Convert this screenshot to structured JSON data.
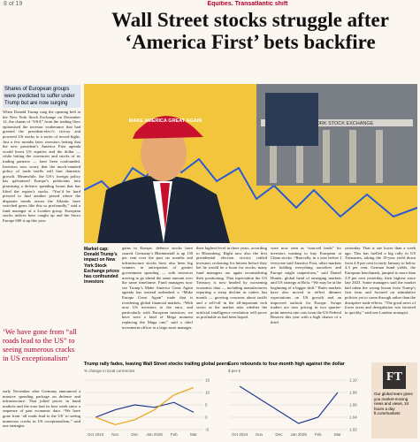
{
  "header": {
    "page": "8 of 19",
    "section": "Equities. Transatlantic shift",
    "headline": "Wall Street stocks struggle after ‘America First’ bets backfire"
  },
  "sidebar": {
    "standfirst": "Shares of European groups were predicted to suffer under Trump but are now surging",
    "body": "When Donald Trump rang the opening bell at the New York Stock Exchange on December 12, the chants of “USA” from the trading floor epitomised the investor exuberance that had greeted the president-elect’s victory and powered US stocks to a series of record highs. Just a few months later, investors betting that the new president’s America First agenda would boost US equities and the dollar — while hitting the currencies and stocks of its trading partners — have been confounded. Investors now worry that the much-vaunted policy of trade tariffs will hurt domestic growth. Meanwhile, the US’s foreign policy has galvanised Europe’s politicians into promising a defence spending boom that has lifted the region’s stocks. “You’d be hard pressed to find another period where the disparate trends across the Atlantic have switched gears like this so profoundly,” said a fund manager at a London group. European stocks indices have caught up and the Stoxx Europe 600 is up this year."
  },
  "image": {
    "cap": "MAKE AMERICA GREAT AGAIN",
    "sign": "NEW YORK STOCK EXCHANGE"
  },
  "caption": "Market cap: Donald Trump’s impact on New York Stock Exchange prices has confounded investors",
  "columns": [
    "gains in Europe, defence stocks have soared. Germany’s Rheinmetall is up 130 per cent over the past six months and infrastructure stocks have also been big winners in anticipation of greater government spending — with investors moving to go ahead the same amount over the same timeframe. Fund managers now see Trump’s Make America Great Again agenda has instead unleashed a “Make Europe Great Again” trade that is reordering global financial markets. “With now US investors to the euro, and particularly with European investors, we have seen a kind of Mega moment replacing the Maga one,” said a chief investment officer at a large asset manager.",
    "their highest level in three years, according to Bloomberg. Right now also the first presidential election victory rattled investors reckoning for havens before they bet he would be a boon for stocks, many fund managers are again reconsidering their positioning. That expectation the US Treasury is now headed by worsening economic data — including manufacturers reporting a steep decline in orders last month — growing concerns about tariffs and a sell-off in the all-important tech sector as the market asks whether the artificial intelligence revolution will prove as profitable as had been hoped.",
    "were now seen as “sourced leads” for investors wanting to buy European at China stocks. “Basically, in a year before I everyone said America First, other markets are holding everything ourselves and Europe might outperform,” said Daniel Hunter, global head of emerging markets and US strategy at Bofa. “We may be at the beginning of a bigger shift.” Rates markets have also moved to reflect dimmer expectations on US growth and an improved outlook for Europe. Swaps traders are now pricing in two quarter-point interest rate cuts from the US Federal Reserve this year with a high chance of a third.",
    "yesterday. That is one lower than a week ago. This has fuelled a big rally in US Treasuries, taking the 10-year yield down from 4.8 per cent in early January to below 4.3 per cent. German bund yields, the European benchmark, jumped to more than 2.8 per cent yesterday, their highest since late 2023. Some managers said the market had taken the wrong lesson from Trump’s first term and focused on stimulative policies yet to come through rather than the disruptive trade effects. “The good news of lower taxes and deregulation was factored in quickly,” said one London strategist."
  ],
  "pull_quote": "‘We have gone from “all roads lead to the US” to seeing numerous cracks in US exceptionalism’",
  "lower_left": "early November after Germany announced a massive spending package on defence and infrastructure. That jolted prices in bund markets and the euro had its best week since a sequence of past economic data. “We have gone from ‘all roads lead to the US’ to seeing numerous cracks in US exceptionalism,” said one strategist.",
  "charts": [
    {
      "type": "line",
      "title": "Trump rally fades, leaving Wall Street stocks trailing global peers",
      "subtitle": "% change in local currencies",
      "categories": [
        "Oct 2024",
        "Nov",
        "Dec",
        "Jan 2025",
        "Feb",
        "Mar"
      ],
      "ylim": [
        -5,
        15
      ],
      "yticks": [
        -5,
        0,
        5,
        10,
        15
      ],
      "series": [
        {
          "color": "#1f3a93",
          "values": [
            0,
            3,
            5,
            4,
            6,
            2
          ]
        },
        {
          "color": "#e8a317",
          "values": [
            0,
            -3,
            -1,
            3,
            9,
            12
          ]
        }
      ]
    },
    {
      "type": "line",
      "title": "Euro rebounds to four-month high against the dollar",
      "subtitle": "$ per €",
      "categories": [
        "Oct 2024",
        "Nov",
        "Dec",
        "Jan 2025",
        "Feb",
        "Mar"
      ],
      "ylim": [
        1.02,
        1.1
      ],
      "yticks": [
        {
          "value": 1.02,
          "label": "1.02"
        },
        {
          "value": 1.04,
          "label": "1.04"
        },
        {
          "value": 1.06,
          "label": "1.06"
        },
        {
          "value": 1.08,
          "label": "1.08"
        },
        {
          "value": 1.1,
          "label": "1.10"
        }
      ],
      "series": [
        {
          "color": "#1f3a93",
          "values": [
            1.09,
            1.07,
            1.05,
            1.03,
            1.04,
            1.08
          ]
        }
      ]
    }
  ],
  "ft": {
    "logo": "FT",
    "text": "Our global team gives you market-moving news and views, 24 hours a day ft.com/markets"
  }
}
